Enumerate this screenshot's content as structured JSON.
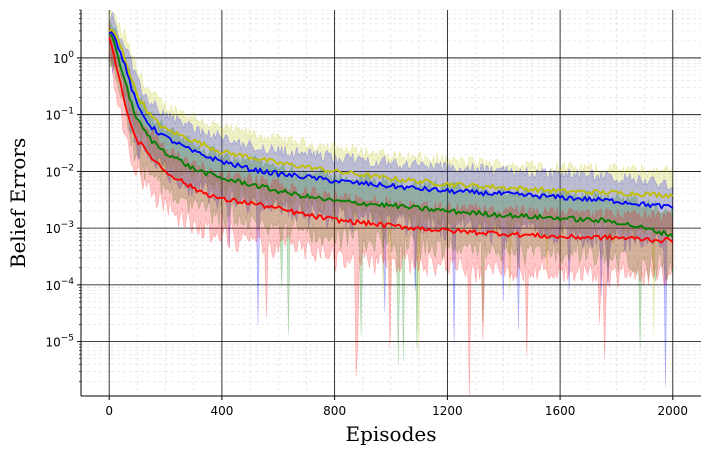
{
  "chart_data": {
    "type": "line",
    "title": "",
    "xlabel": "Episodes",
    "ylabel": "Belief Errors",
    "xlim": [
      -100,
      2100
    ],
    "ylim": [
      1.1e-06,
      7
    ],
    "yscale": "log",
    "grid": true,
    "legend": "none",
    "xticks": [
      0,
      400,
      800,
      1200,
      1600,
      2000
    ],
    "xtick_labels": [
      "0",
      "400",
      "800",
      "1200",
      "1600",
      "2000"
    ],
    "yticks": [
      1e-05,
      0.0001,
      0.001,
      0.01,
      0.1,
      1
    ],
    "ytick_labels": [
      {
        "base": "10",
        "exp": "−5"
      },
      {
        "base": "10",
        "exp": "−4"
      },
      {
        "base": "10",
        "exp": "−3"
      },
      {
        "base": "10",
        "exp": "−2"
      },
      {
        "base": "10",
        "exp": "−1"
      },
      {
        "base": "10",
        "exp": "0"
      }
    ],
    "series": [
      {
        "color": "#bfbf00",
        "x": [
          0,
          10,
          25,
          50,
          75,
          100,
          150,
          200,
          300,
          400,
          500,
          600,
          700,
          800,
          1000,
          1200,
          1400,
          1600,
          1800,
          2000
        ],
        "y": [
          2.9,
          3.2,
          2.5,
          1.2,
          0.5,
          0.22,
          0.09,
          0.055,
          0.035,
          0.022,
          0.018,
          0.014,
          0.012,
          0.01,
          0.0075,
          0.006,
          0.0052,
          0.0045,
          0.0042,
          0.0038
        ]
      },
      {
        "color": "#0000ff",
        "x": [
          0,
          10,
          25,
          50,
          75,
          100,
          150,
          200,
          300,
          400,
          500,
          600,
          700,
          800,
          1000,
          1200,
          1400,
          1600,
          1800,
          2000
        ],
        "y": [
          2.7,
          2.9,
          2.0,
          0.9,
          0.35,
          0.14,
          0.06,
          0.04,
          0.022,
          0.015,
          0.011,
          0.009,
          0.008,
          0.0068,
          0.0055,
          0.0045,
          0.004,
          0.0035,
          0.003,
          0.0023
        ]
      },
      {
        "color": "#008000",
        "x": [
          0,
          10,
          25,
          50,
          75,
          100,
          150,
          200,
          300,
          400,
          500,
          600,
          700,
          800,
          1000,
          1200,
          1400,
          1600,
          1800,
          2000
        ],
        "y": [
          2.5,
          2.5,
          1.4,
          0.5,
          0.18,
          0.08,
          0.035,
          0.022,
          0.011,
          0.0075,
          0.006,
          0.0045,
          0.0036,
          0.003,
          0.0025,
          0.002,
          0.0017,
          0.0015,
          0.0013,
          0.00075
        ]
      },
      {
        "color": "#ff0000",
        "x": [
          0,
          10,
          25,
          50,
          75,
          100,
          150,
          200,
          300,
          400,
          500,
          600,
          700,
          800,
          1000,
          1200,
          1400,
          1600,
          1800,
          2000
        ],
        "y": [
          2.3,
          1.6,
          0.7,
          0.22,
          0.07,
          0.035,
          0.018,
          0.01,
          0.005,
          0.0032,
          0.0028,
          0.0022,
          0.0017,
          0.0014,
          0.0011,
          0.0009,
          0.0008,
          0.0007,
          0.00068,
          0.0006
        ]
      }
    ]
  }
}
